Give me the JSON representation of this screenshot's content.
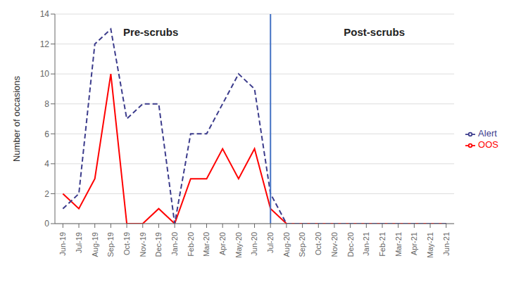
{
  "chart_data": {
    "type": "line",
    "categories": [
      "Jun-19",
      "Jul-19",
      "Aug-19",
      "Sep-19",
      "Oct-19",
      "Nov-19",
      "Dec-19",
      "Jan-20",
      "Feb-20",
      "Mar-20",
      "Apr-20",
      "May-20",
      "Jun-20",
      "Jul-20",
      "Aug-20",
      "Sep-20",
      "Oct-20",
      "Nov-20",
      "Dec-20",
      "Jan-21",
      "Feb-21",
      "Mar-21",
      "Apr-21",
      "May-21",
      "Jun-21"
    ],
    "series": [
      {
        "name": "OOS",
        "color": "#FF0000",
        "line_style": "solid",
        "values": [
          2,
          1,
          3,
          10,
          0,
          0,
          1,
          0,
          3,
          3,
          5,
          3,
          5,
          1,
          0,
          0,
          0,
          0,
          0,
          0,
          0,
          0,
          0,
          0,
          0
        ]
      },
      {
        "name": "Alert",
        "color": "#3C3C8C",
        "line_style": "dashed",
        "values": [
          1,
          2,
          12,
          13,
          7,
          8,
          8,
          0,
          6,
          6,
          8,
          10,
          9,
          2,
          0,
          0,
          0,
          0,
          0,
          0,
          0,
          0,
          0,
          0,
          0
        ]
      }
    ],
    "ylabel": "Number of occasions",
    "ylim": [
      0,
      14
    ],
    "yticks": [
      0,
      2,
      4,
      6,
      8,
      10,
      12,
      14
    ],
    "grid": true,
    "legend": "right",
    "vline": {
      "x": "Jul-20",
      "color": "#4472C4"
    },
    "annotations": [
      {
        "text": "Pre-scrubs",
        "x": 5.5,
        "y": 12.8
      },
      {
        "text": "Post-scrubs",
        "x": 19.5,
        "y": 12.8
      }
    ]
  }
}
